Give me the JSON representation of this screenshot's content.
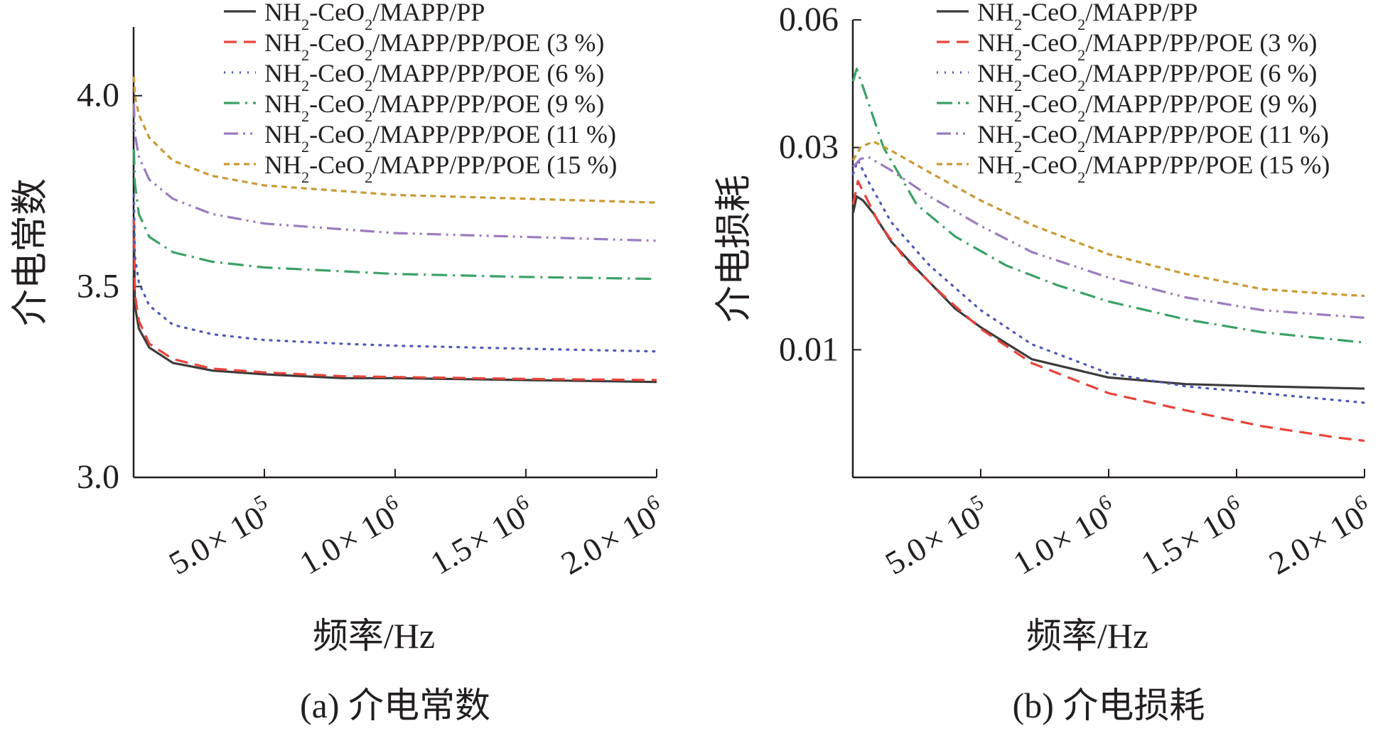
{
  "chart_data": [
    {
      "type": "line",
      "panel_caption": "(a) 介电常数",
      "xlabel": "频率/Hz",
      "ylabel": "介电常数",
      "x_tick_values": [
        500000,
        1000000,
        1500000,
        2000000
      ],
      "x_tick_labels": [
        [
          "5.0",
          "× 10",
          "5"
        ],
        [
          "1.0",
          "× 10",
          "6"
        ],
        [
          "1.5",
          "× 10",
          "6"
        ],
        [
          "2.0",
          "× 10",
          "6"
        ]
      ],
      "y_tick_values": [
        3.0,
        3.5,
        4.0
      ],
      "y_tick_labels": [
        "3.0",
        "3.5",
        "4.0"
      ],
      "xlim": [
        0,
        2000000
      ],
      "ylim": [
        3.0,
        4.18
      ],
      "y_scale": "linear",
      "grid": false,
      "legend": "top-right",
      "series": [
        {
          "name": "NH2-CeO2/MAPP/PP",
          "color": "#3d3a3a",
          "dash": "solid",
          "points": [
            [
              1000,
              3.66
            ],
            [
              5000,
              3.45
            ],
            [
              20000,
              3.39
            ],
            [
              60000,
              3.34
            ],
            [
              150000,
              3.3
            ],
            [
              300000,
              3.28
            ],
            [
              500000,
              3.27
            ],
            [
              800000,
              3.26
            ],
            [
              1000000,
              3.26
            ],
            [
              1500000,
              3.255
            ],
            [
              2000000,
              3.25
            ]
          ]
        },
        {
          "name": "NH2-CeO2/MAPP/PP/POE (3 %)",
          "color": "#e8443a",
          "dash": "dashed",
          "points": [
            [
              1000,
              3.68
            ],
            [
              5000,
              3.48
            ],
            [
              20000,
              3.41
            ],
            [
              60000,
              3.35
            ],
            [
              150000,
              3.31
            ],
            [
              300000,
              3.285
            ],
            [
              500000,
              3.275
            ],
            [
              800000,
              3.265
            ],
            [
              1000000,
              3.263
            ],
            [
              1500000,
              3.258
            ],
            [
              2000000,
              3.255
            ]
          ]
        },
        {
          "name": "NH2-CeO2/MAPP/PP/POE (6 %)",
          "color": "#4e58b6",
          "dash": "dotted",
          "points": [
            [
              1000,
              3.74
            ],
            [
              5000,
              3.58
            ],
            [
              20000,
              3.51
            ],
            [
              60000,
              3.45
            ],
            [
              150000,
              3.4
            ],
            [
              300000,
              3.375
            ],
            [
              500000,
              3.36
            ],
            [
              800000,
              3.35
            ],
            [
              1000000,
              3.345
            ],
            [
              1500000,
              3.337
            ],
            [
              2000000,
              3.33
            ]
          ]
        },
        {
          "name": "NH2-CeO2/MAPP/PP/POE (9 %)",
          "color": "#3aa166",
          "dash": "dashdot",
          "points": [
            [
              1000,
              3.86
            ],
            [
              5000,
              3.77
            ],
            [
              20000,
              3.69
            ],
            [
              60000,
              3.63
            ],
            [
              150000,
              3.59
            ],
            [
              300000,
              3.565
            ],
            [
              500000,
              3.55
            ],
            [
              800000,
              3.54
            ],
            [
              1000000,
              3.533
            ],
            [
              1500000,
              3.525
            ],
            [
              2000000,
              3.52
            ]
          ]
        },
        {
          "name": "NH2-CeO2/MAPP/PP/POE (11 %)",
          "color": "#9b7bbf",
          "dash": "dashdotdot",
          "points": [
            [
              1000,
              3.98
            ],
            [
              5000,
              3.9
            ],
            [
              20000,
              3.84
            ],
            [
              60000,
              3.78
            ],
            [
              150000,
              3.73
            ],
            [
              300000,
              3.69
            ],
            [
              500000,
              3.665
            ],
            [
              800000,
              3.65
            ],
            [
              1000000,
              3.64
            ],
            [
              1500000,
              3.63
            ],
            [
              2000000,
              3.62
            ]
          ]
        },
        {
          "name": "NH2-CeO2/MAPP/PP/POE (15 %)",
          "color": "#c99a34",
          "dash": "dashed-short",
          "points": [
            [
              1000,
              4.05
            ],
            [
              5000,
              4.0
            ],
            [
              20000,
              3.95
            ],
            [
              60000,
              3.89
            ],
            [
              150000,
              3.83
            ],
            [
              300000,
              3.79
            ],
            [
              500000,
              3.765
            ],
            [
              800000,
              3.75
            ],
            [
              1000000,
              3.74
            ],
            [
              1500000,
              3.73
            ],
            [
              2000000,
              3.72
            ]
          ]
        }
      ]
    },
    {
      "type": "line",
      "panel_caption": "(b) 介电损耗",
      "xlabel": "频率/Hz",
      "ylabel": "介电损耗",
      "x_tick_values": [
        500000,
        1000000,
        1500000,
        2000000
      ],
      "x_tick_labels": [
        [
          "5.0",
          "× 10",
          "5"
        ],
        [
          "1.0",
          "× 10",
          "6"
        ],
        [
          "1.5",
          "× 10",
          "6"
        ],
        [
          "2.0",
          "× 10",
          "6"
        ]
      ],
      "y_tick_values": [
        0.01,
        0.03,
        0.06
      ],
      "y_tick_labels": [
        "0.01",
        "0.03",
        "0.06"
      ],
      "xlim": [
        0,
        2000000
      ],
      "ylim": [
        0.005,
        0.06
      ],
      "y_scale": "log",
      "grid": false,
      "legend": "top-right",
      "series": [
        {
          "name": "NH2-CeO2/MAPP/PP",
          "color": "#3d3a3a",
          "dash": "solid",
          "points": [
            [
              1000,
              0.021
            ],
            [
              15000,
              0.023
            ],
            [
              40000,
              0.0225
            ],
            [
              80000,
              0.021
            ],
            [
              150000,
              0.018
            ],
            [
              250000,
              0.0155
            ],
            [
              400000,
              0.0125
            ],
            [
              500000,
              0.0113
            ],
            [
              700000,
              0.0095
            ],
            [
              1000000,
              0.0086
            ],
            [
              1300000,
              0.0083
            ],
            [
              1600000,
              0.0082
            ],
            [
              2000000,
              0.0081
            ]
          ]
        },
        {
          "name": "NH2-CeO2/MAPP/PP/POE (3 %)",
          "color": "#e8443a",
          "dash": "dashed",
          "points": [
            [
              1000,
              0.022
            ],
            [
              20000,
              0.025
            ],
            [
              50000,
              0.023
            ],
            [
              100000,
              0.02
            ],
            [
              200000,
              0.0165
            ],
            [
              350000,
              0.0135
            ],
            [
              500000,
              0.0112
            ],
            [
              700000,
              0.0093
            ],
            [
              1000000,
              0.0079
            ],
            [
              1300000,
              0.0072
            ],
            [
              1600000,
              0.0066
            ],
            [
              1900000,
              0.0062
            ],
            [
              2000000,
              0.0061
            ]
          ]
        },
        {
          "name": "NH2-CeO2/MAPP/PP/POE (6 %)",
          "color": "#4e58b6",
          "dash": "dotted",
          "points": [
            [
              1000,
              0.026
            ],
            [
              20000,
              0.028
            ],
            [
              60000,
              0.025
            ],
            [
              150000,
              0.02
            ],
            [
              300000,
              0.0158
            ],
            [
              500000,
              0.0124
            ],
            [
              700000,
              0.0103
            ],
            [
              1000000,
              0.0088
            ],
            [
              1300000,
              0.0082
            ],
            [
              1600000,
              0.0079
            ],
            [
              2000000,
              0.0075
            ]
          ]
        },
        {
          "name": "NH2-CeO2/MAPP/PP/POE (9 %)",
          "color": "#3aa166",
          "dash": "dashdot",
          "points": [
            [
              1000,
              0.043
            ],
            [
              15000,
              0.046
            ],
            [
              50000,
              0.04
            ],
            [
              120000,
              0.03
            ],
            [
              250000,
              0.022
            ],
            [
              400000,
              0.0185
            ],
            [
              600000,
              0.0158
            ],
            [
              800000,
              0.0142
            ],
            [
              1000000,
              0.013
            ],
            [
              1300000,
              0.0118
            ],
            [
              1600000,
              0.011
            ],
            [
              2000000,
              0.0104
            ]
          ]
        },
        {
          "name": "NH2-CeO2/MAPP/PP/POE (11 %)",
          "color": "#9b7bbf",
          "dash": "dashdotdot",
          "points": [
            [
              1000,
              0.027
            ],
            [
              30000,
              0.0282
            ],
            [
              60000,
              0.0285
            ],
            [
              150000,
              0.0265
            ],
            [
              300000,
              0.023
            ],
            [
              500000,
              0.0196
            ],
            [
              700000,
              0.017
            ],
            [
              1000000,
              0.0148
            ],
            [
              1300000,
              0.0133
            ],
            [
              1600000,
              0.0124
            ],
            [
              2000000,
              0.0119
            ]
          ]
        },
        {
          "name": "NH2-CeO2/MAPP/PP/POE (15 %)",
          "color": "#c99a34",
          "dash": "dashed-short",
          "points": [
            [
              1000,
              0.028
            ],
            [
              30000,
              0.03
            ],
            [
              80000,
              0.031
            ],
            [
              150000,
              0.0295
            ],
            [
              300000,
              0.0262
            ],
            [
              500000,
              0.0225
            ],
            [
              700000,
              0.0197
            ],
            [
              1000000,
              0.0168
            ],
            [
              1300000,
              0.0151
            ],
            [
              1600000,
              0.0139
            ],
            [
              1900000,
              0.0135
            ],
            [
              2000000,
              0.0134
            ]
          ]
        }
      ]
    }
  ]
}
